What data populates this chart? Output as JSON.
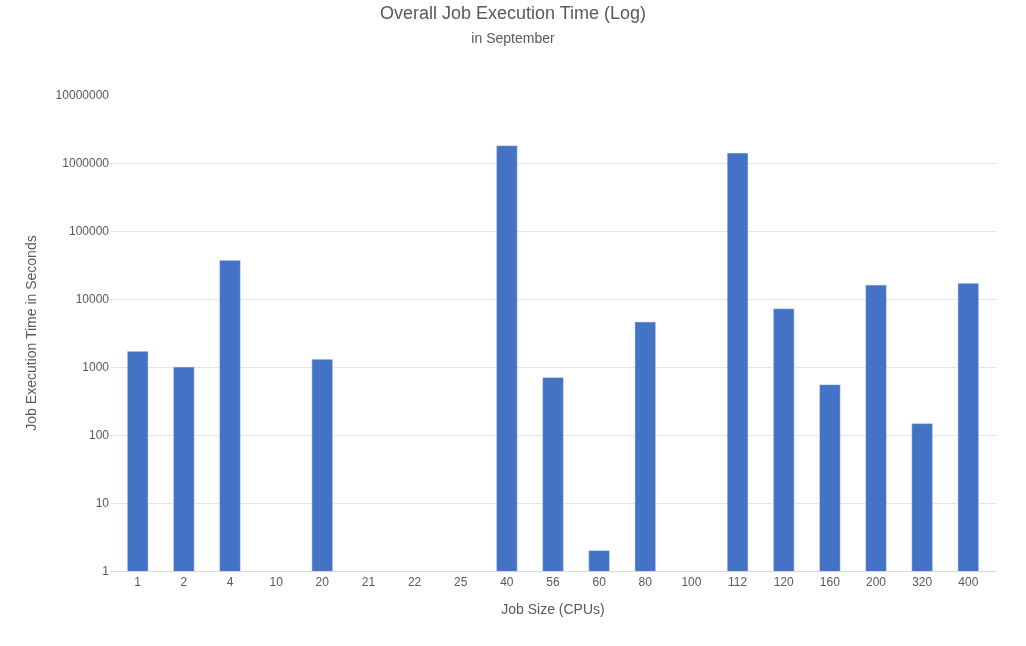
{
  "chart_data": {
    "type": "bar",
    "title": "Overall Job Execution Time (Log)",
    "subtitle": "in September",
    "xlabel": "Job Size (CPUs)",
    "ylabel": "Job Execution Time in Seconds",
    "categories": [
      "1",
      "2",
      "4",
      "10",
      "20",
      "21",
      "22",
      "25",
      "40",
      "56",
      "60",
      "80",
      "100",
      "112",
      "120",
      "160",
      "200",
      "320",
      "400"
    ],
    "values": [
      1700,
      1000,
      37000,
      null,
      1300,
      null,
      null,
      null,
      1800000,
      700,
      2,
      4600,
      null,
      1400000,
      7200,
      550,
      16000,
      147,
      17000
    ],
    "color": "#4472c4",
    "log": "y",
    "ylim": [
      1,
      10000000
    ],
    "yticks": [
      1,
      10,
      100,
      1000,
      10000,
      100000,
      1000000,
      10000000
    ],
    "grid": "y",
    "legend": false
  }
}
